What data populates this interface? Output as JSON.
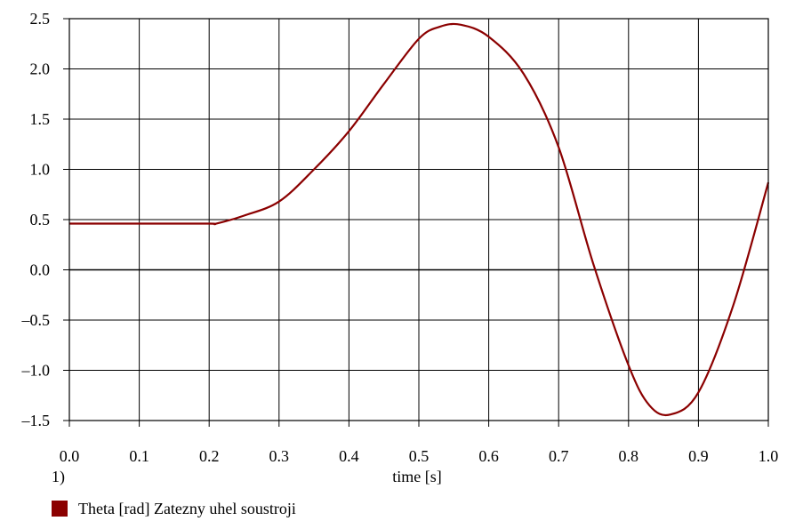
{
  "chart_data": {
    "type": "line",
    "xlabel": "time [s]",
    "plot_number_label": "1)",
    "xlim": [
      0.0,
      1.0
    ],
    "ylim": [
      -1.5,
      2.5
    ],
    "x_ticks": [
      "0.0",
      "0.1",
      "0.2",
      "0.3",
      "0.4",
      "0.5",
      "0.6",
      "0.7",
      "0.8",
      "0.9",
      "1.0"
    ],
    "y_ticks": [
      "2.5",
      "2.0",
      "1.5",
      "1.0",
      "0.5",
      "0.0",
      "–0.5",
      "–1.0",
      "–1.5"
    ],
    "grid": true,
    "legend_position": "bottom-left",
    "series": [
      {
        "name": "Theta [rad] Zatezny uhel soustroji",
        "color": "#8b0000",
        "x": [
          0.0,
          0.1,
          0.2,
          0.21,
          0.25,
          0.3,
          0.35,
          0.4,
          0.45,
          0.5,
          0.53,
          0.56,
          0.6,
          0.65,
          0.7,
          0.75,
          0.8,
          0.83,
          0.86,
          0.9,
          0.95,
          1.0
        ],
        "y": [
          0.46,
          0.46,
          0.46,
          0.46,
          0.54,
          0.68,
          1.0,
          1.38,
          1.85,
          2.3,
          2.42,
          2.44,
          2.32,
          1.95,
          1.22,
          0.05,
          -0.95,
          -1.35,
          -1.44,
          -1.22,
          -0.35,
          0.87
        ]
      }
    ]
  }
}
